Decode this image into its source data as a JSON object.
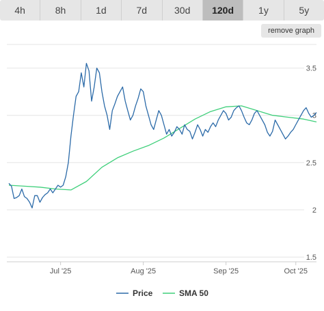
{
  "tabs": [
    {
      "label": "4h"
    },
    {
      "label": "8h"
    },
    {
      "label": "1d"
    },
    {
      "label": "7d"
    },
    {
      "label": "30d"
    },
    {
      "label": "120d",
      "active": true
    },
    {
      "label": "1y"
    },
    {
      "label": "5y"
    }
  ],
  "remove_graph_label": "remove graph",
  "chart_data": {
    "type": "line",
    "x_ticks": [
      "Jul '25",
      "Aug '25",
      "Sep '25",
      "Oct '25"
    ],
    "y_ticks": [
      "3.5",
      "3",
      "2.5",
      "2",
      "1.5"
    ],
    "ylim": [
      1.45,
      3.75
    ],
    "grid": true,
    "legend_placement": "bottom",
    "series": [
      {
        "name": "Price",
        "color": "#2b6aa8",
        "x": [
          0,
          1,
          2,
          3,
          4,
          5,
          6,
          7,
          8,
          9,
          10,
          11,
          12,
          13,
          14,
          15,
          16,
          17,
          18,
          19,
          20,
          21,
          22,
          23,
          24,
          25,
          26,
          27,
          28,
          29,
          30,
          31,
          32,
          33,
          34,
          35,
          36,
          37,
          38,
          39,
          40,
          41,
          42,
          43,
          44,
          45,
          46,
          47,
          48,
          49,
          50,
          51,
          52,
          53,
          54,
          55,
          56,
          57,
          58,
          59,
          60,
          61,
          62,
          63,
          64,
          65,
          66,
          67,
          68,
          69,
          70,
          71,
          72,
          73,
          74,
          75,
          76,
          77,
          78,
          79,
          80,
          81,
          82,
          83,
          84,
          85,
          86,
          87,
          88,
          89,
          90,
          91,
          92,
          93,
          94,
          95,
          96,
          97,
          98,
          99,
          100,
          101,
          102,
          103,
          104,
          105,
          106,
          107,
          108,
          109,
          110,
          111,
          112,
          113,
          114,
          115,
          116,
          117,
          118,
          119
        ],
        "values": [
          2.28,
          2.25,
          2.12,
          2.13,
          2.15,
          2.22,
          2.14,
          2.12,
          2.08,
          2.02,
          2.15,
          2.15,
          2.08,
          2.13,
          2.16,
          2.18,
          2.22,
          2.18,
          2.22,
          2.26,
          2.24,
          2.26,
          2.35,
          2.5,
          2.78,
          3.0,
          3.2,
          3.25,
          3.45,
          3.3,
          3.55,
          3.47,
          3.15,
          3.3,
          3.5,
          3.45,
          3.25,
          3.1,
          3.0,
          2.85,
          3.05,
          3.12,
          3.2,
          3.25,
          3.3,
          3.15,
          3.05,
          2.95,
          3.0,
          3.1,
          3.18,
          3.28,
          3.25,
          3.1,
          3.0,
          2.9,
          2.85,
          2.95,
          3.05,
          3.0,
          2.9,
          2.8,
          2.85,
          2.78,
          2.82,
          2.88,
          2.85,
          2.8,
          2.9,
          2.85,
          2.83,
          2.75,
          2.82,
          2.9,
          2.85,
          2.78,
          2.85,
          2.82,
          2.88,
          2.92,
          2.88,
          2.95,
          3.0,
          3.05,
          3.02,
          2.95,
          2.98,
          3.05,
          3.08,
          3.1,
          3.05,
          2.98,
          2.92,
          2.9,
          2.95,
          3.02,
          3.05,
          3.0,
          2.95,
          2.9,
          2.82,
          2.78,
          2.83,
          2.95,
          2.9,
          2.85,
          2.8,
          2.75,
          2.78,
          2.82,
          2.85,
          2.9,
          2.95,
          3.0,
          3.05,
          3.08,
          3.02,
          2.98,
          3.0,
          3.03
        ]
      },
      {
        "name": "SMA 50",
        "color": "#3ecf7a",
        "x": [
          0,
          6,
          12,
          18,
          24,
          30,
          36,
          42,
          48,
          54,
          60,
          66,
          72,
          78,
          84,
          90,
          96,
          102,
          108,
          114,
          119
        ],
        "values": [
          2.26,
          2.25,
          2.24,
          2.22,
          2.21,
          2.3,
          2.45,
          2.55,
          2.62,
          2.68,
          2.76,
          2.86,
          2.96,
          3.04,
          3.09,
          3.1,
          3.05,
          3.0,
          2.98,
          2.96,
          2.93
        ]
      }
    ],
    "legend": [
      "Price",
      "SMA 50"
    ]
  }
}
